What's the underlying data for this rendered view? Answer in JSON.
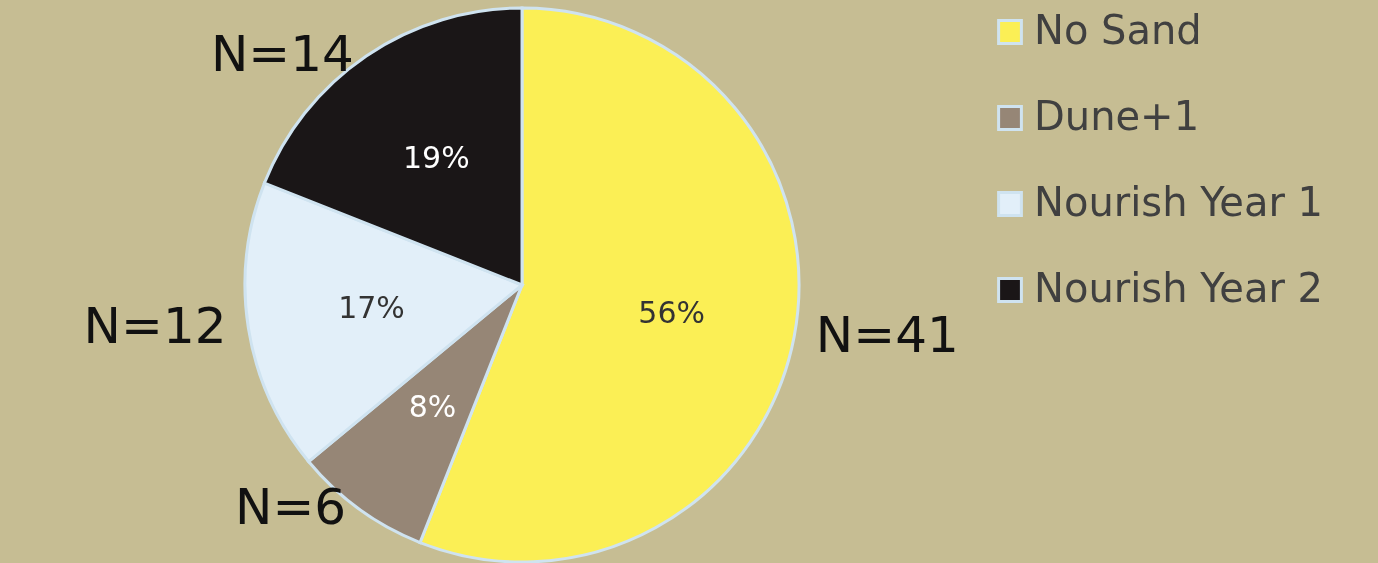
{
  "chart_data": {
    "type": "pie",
    "categories": [
      "No Sand",
      "Dune+1",
      "Nourish Year 1",
      "Nourish Year 2"
    ],
    "values": [
      56,
      8,
      17,
      19
    ],
    "colors": [
      "#fbef55",
      "#968676",
      "#e2eff9",
      "#1a1617"
    ],
    "value_labels": [
      "56%",
      "8%",
      "17%",
      "19%"
    ],
    "annotations": [
      {
        "text": "N=41",
        "x": "No Sand"
      },
      {
        "text": "N=6",
        "x": "Dune+1"
      },
      {
        "text": "N=12",
        "x": "Nourish Year 1"
      },
      {
        "text": "N=14",
        "x": "Nourish Year 2"
      }
    ],
    "legend": "right"
  }
}
